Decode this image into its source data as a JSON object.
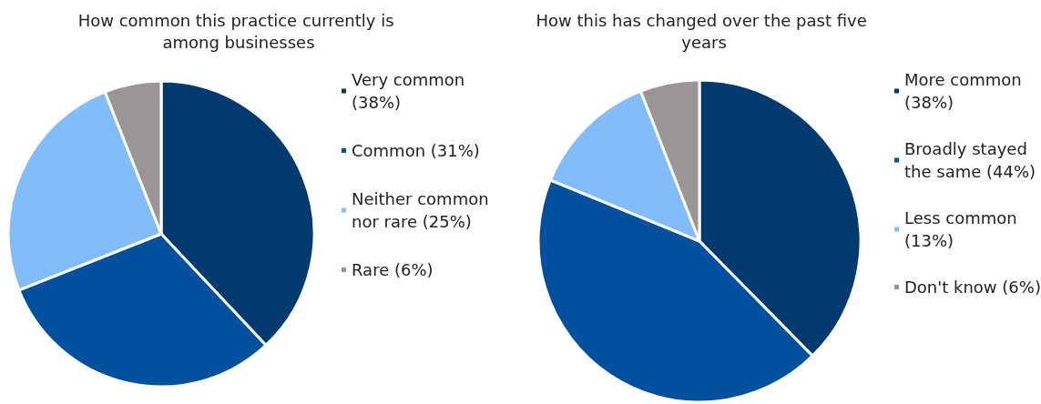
{
  "chart_data": [
    {
      "type": "pie",
      "title": "How common this practice currently is among businesses",
      "categories": [
        "Very common (38%)",
        "Common (31%)",
        "Neither common nor rare (25%)",
        "Rare (6%)"
      ],
      "values": [
        38,
        31,
        25,
        6
      ],
      "colors": [
        "#003a6e",
        "#0050a0",
        "#82bdfb",
        "#9a9696"
      ],
      "legend": "right"
    },
    {
      "type": "pie",
      "title": "How this has changed over the past five years",
      "categories": [
        "More common (38%)",
        "Broadly stayed the same (44%)",
        "Less common (13%)",
        "Don't know (6%)"
      ],
      "values": [
        38,
        44,
        13,
        6
      ],
      "colors": [
        "#003a6e",
        "#0050a0",
        "#82bdfb",
        "#9a9696"
      ],
      "legend": "right"
    }
  ]
}
